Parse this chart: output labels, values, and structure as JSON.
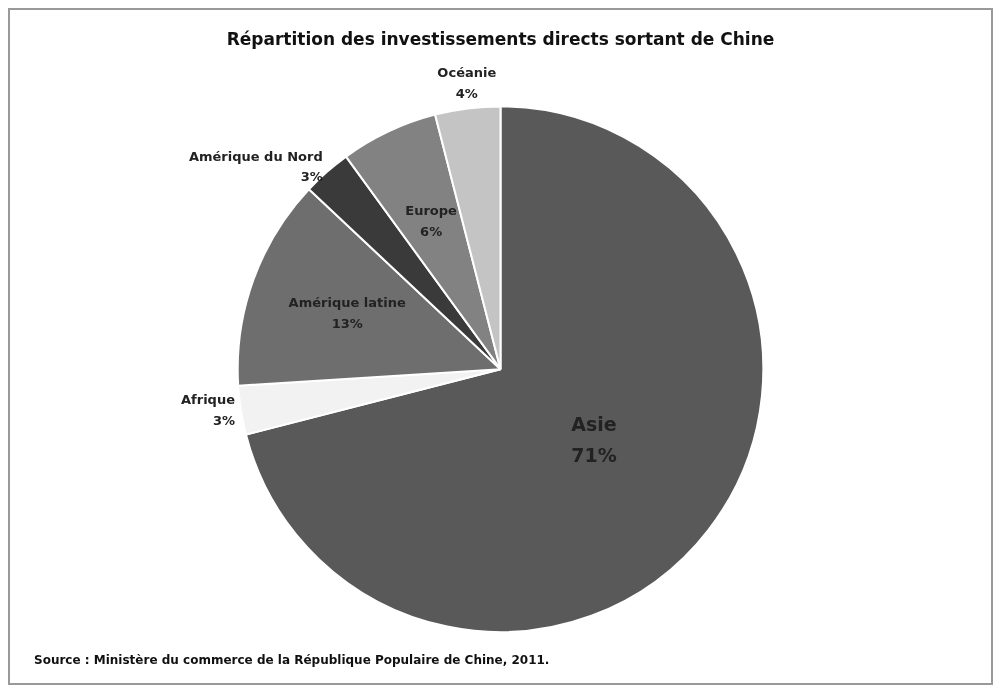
{
  "chart_data": {
    "type": "pie",
    "title": "Répartition des investissements directs sortant de Chine",
    "categories": [
      "Asie",
      "Afrique",
      "Amérique latine",
      "Amérique du Nord",
      "Europe",
      "Océanie"
    ],
    "values": [
      71,
      3,
      13,
      3,
      6,
      4
    ],
    "colors": [
      "#595959",
      "#f2f2f2",
      "#6e6e6e",
      "#3a3a3a",
      "#828282",
      "#c4c4c4"
    ],
    "value_labels": [
      "71%",
      "3%",
      "13%",
      "3%",
      "6%",
      "4%"
    ],
    "legend": false,
    "annotations": [
      "Source : Ministère du commerce de la République Populaire de Chine, 2011."
    ]
  }
}
